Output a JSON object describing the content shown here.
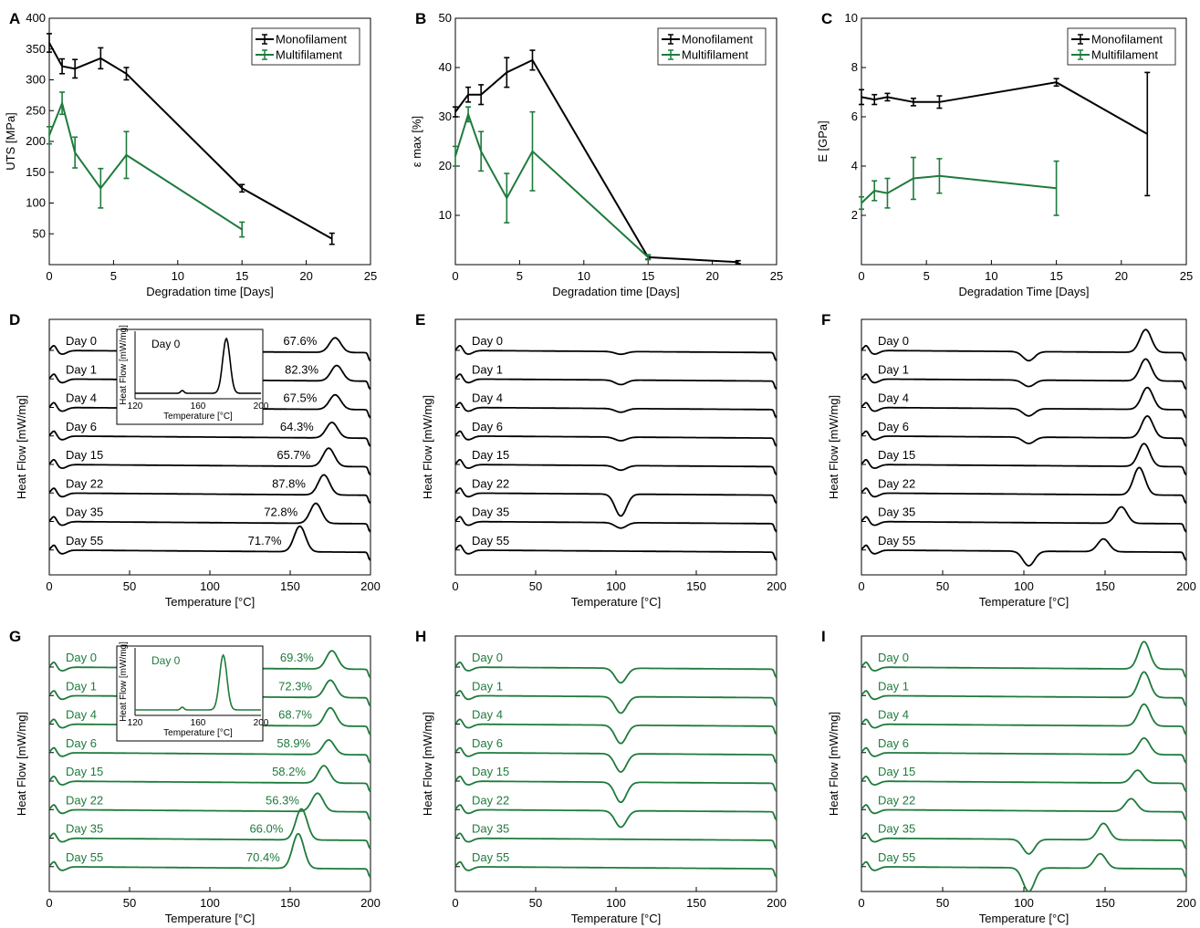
{
  "colors": {
    "mono": "#000000",
    "multi": "#1e7b3c"
  },
  "chart_data": [
    {
      "id": "A",
      "type": "line",
      "panel_label": "A",
      "xlabel": "Degradation time [Days]",
      "ylabel": "UTS [MPa]",
      "xlim": [
        0,
        25
      ],
      "ylim": [
        0,
        400
      ],
      "xticks": [
        "0",
        "5",
        "10",
        "15",
        "20",
        "25"
      ],
      "yticks": [
        "50",
        "100",
        "150",
        "200",
        "250",
        "300",
        "350",
        "400"
      ],
      "grid": false,
      "legend_position": "top-right",
      "series": [
        {
          "name": "Monofilament",
          "color_key": "mono",
          "x": [
            0,
            1,
            2,
            4,
            6,
            15,
            22
          ],
          "y": [
            360,
            322,
            318,
            335,
            310,
            124,
            42
          ],
          "err": [
            15,
            12,
            15,
            17,
            10,
            6,
            9
          ]
        },
        {
          "name": "Multifilament",
          "color_key": "multi",
          "x": [
            0,
            1,
            2,
            4,
            6,
            15
          ],
          "y": [
            210,
            262,
            182,
            124,
            178,
            57
          ],
          "err": [
            14,
            18,
            25,
            32,
            38,
            12
          ]
        }
      ]
    },
    {
      "id": "B",
      "type": "line",
      "panel_label": "B",
      "xlabel": "Degradation time [Days]",
      "ylabel": "ε max [%]",
      "xlim": [
        0,
        25
      ],
      "ylim": [
        0,
        50
      ],
      "xticks": [
        "0",
        "5",
        "10",
        "15",
        "20",
        "25"
      ],
      "yticks": [
        "10",
        "20",
        "30",
        "40",
        "50"
      ],
      "grid": false,
      "legend_position": "top-right",
      "series": [
        {
          "name": "Monofilament",
          "color_key": "mono",
          "x": [
            0,
            1,
            2,
            4,
            6,
            15,
            22
          ],
          "y": [
            31,
            34.5,
            34.5,
            39,
            41.5,
            1.5,
            0.5
          ],
          "err": [
            1,
            1.5,
            2,
            3,
            2,
            0.4,
            0.3
          ]
        },
        {
          "name": "Multifilament",
          "color_key": "multi",
          "x": [
            0,
            1,
            2,
            4,
            6,
            15
          ],
          "y": [
            22,
            30.5,
            23,
            13.5,
            23,
            1.5
          ],
          "err": [
            2,
            1.5,
            4,
            5,
            8,
            0.5
          ]
        }
      ]
    },
    {
      "id": "C",
      "type": "line",
      "panel_label": "C",
      "xlabel": "Degradation Time [Days]",
      "ylabel": "E [GPa]",
      "xlim": [
        0,
        25
      ],
      "ylim": [
        0,
        10
      ],
      "xticks": [
        "0",
        "5",
        "10",
        "15",
        "20",
        "25"
      ],
      "yticks": [
        "2",
        "4",
        "6",
        "8",
        "10"
      ],
      "grid": false,
      "legend_position": "top-right",
      "series": [
        {
          "name": "Monofilament",
          "color_key": "mono",
          "x": [
            0,
            1,
            2,
            4,
            6,
            15,
            22
          ],
          "y": [
            6.8,
            6.7,
            6.8,
            6.6,
            6.6,
            7.4,
            5.3
          ],
          "err": [
            0.3,
            0.2,
            0.15,
            0.15,
            0.25,
            0.15,
            2.5
          ]
        },
        {
          "name": "Multifilament",
          "color_key": "multi",
          "x": [
            0,
            1,
            2,
            4,
            6,
            15
          ],
          "y": [
            2.5,
            3.0,
            2.9,
            3.5,
            3.6,
            3.1
          ],
          "err": [
            0.25,
            0.4,
            0.6,
            0.85,
            0.7,
            1.1
          ]
        }
      ]
    },
    {
      "id": "D",
      "type": "line",
      "panel_label": "D",
      "color_key": "mono",
      "xlabel": "Temperature [°C]",
      "ylabel": "Heat Flow [mW/mg]",
      "xlim": [
        0,
        200
      ],
      "xticks": [
        "0",
        "50",
        "100",
        "150",
        "200"
      ],
      "curves": [
        {
          "label": "Day 0",
          "percent": "67.6%",
          "base": 1.25,
          "endo": 0,
          "peaks": [
            [
              178,
              16
            ]
          ]
        },
        {
          "label": "Day 1",
          "percent": "82.3%",
          "base": 1.25,
          "endo": 0,
          "peaks": [
            [
              179,
              17
            ]
          ]
        },
        {
          "label": "Day 4",
          "percent": "67.5%",
          "base": 1.25,
          "endo": 0,
          "peaks": [
            [
              178,
              16
            ]
          ]
        },
        {
          "label": "Day 6",
          "percent": "64.3%",
          "base": 1.25,
          "endo": 0,
          "peaks": [
            [
              176,
              17
            ]
          ]
        },
        {
          "label": "Day 15",
          "percent": "65.7%",
          "base": 1.25,
          "endo": 0,
          "peaks": [
            [
              174,
              20
            ]
          ]
        },
        {
          "label": "Day 22",
          "percent": "87.8%",
          "base": 1.25,
          "endo": 0,
          "peaks": [
            [
              171,
              22
            ]
          ]
        },
        {
          "label": "Day 35",
          "percent": "72.8%",
          "base": 1.25,
          "endo": 0,
          "peaks": [
            [
              166,
              22
            ]
          ]
        },
        {
          "label": "Day 55",
          "percent": "71.7%",
          "base": 1.25,
          "endo": 0,
          "peaks": [
            [
              156,
              28
            ]
          ]
        }
      ],
      "inset": {
        "title": "Day 0",
        "xlabel": "Temperature [°C]",
        "ylabel": "Heat Flow [mW/mg]",
        "xlim": [
          120,
          200
        ],
        "xticks": [
          "120",
          "160",
          "200"
        ]
      }
    },
    {
      "id": "E",
      "type": "line",
      "panel_label": "E",
      "color_key": "mono",
      "xlabel": "Temperature [°C]",
      "ylabel": "Heat Flow [mW/mg]",
      "xlim": [
        0,
        200
      ],
      "xticks": [
        "0",
        "50",
        "100",
        "150",
        "200"
      ],
      "curves": [
        {
          "label": "Day 0",
          "base": 1.2,
          "endo": 3,
          "peaks": []
        },
        {
          "label": "Day 1",
          "base": 1.2,
          "endo": 5,
          "peaks": []
        },
        {
          "label": "Day 4",
          "base": 1.2,
          "endo": 4,
          "peaks": []
        },
        {
          "label": "Day 6",
          "base": 1.2,
          "endo": 4,
          "peaks": []
        },
        {
          "label": "Day 15",
          "base": 1.2,
          "endo": 5,
          "peaks": []
        },
        {
          "label": "Day 22",
          "base": 1.2,
          "endo": 24,
          "peaks": []
        },
        {
          "label": "Day 35",
          "base": 1.2,
          "endo": 6,
          "peaks": []
        },
        {
          "label": "Day 55",
          "base": 1.2,
          "endo": 0,
          "peaks": []
        }
      ]
    },
    {
      "id": "F",
      "type": "line",
      "panel_label": "F",
      "color_key": "mono",
      "xlabel": "Temperature [°C]",
      "ylabel": "Heat Flow [mW/mg]",
      "xlim": [
        0,
        200
      ],
      "xticks": [
        "0",
        "50",
        "100",
        "150",
        "200"
      ],
      "curves": [
        {
          "label": "Day 0",
          "base": 1.25,
          "endo": 10,
          "peaks": [
            [
              175,
              25
            ]
          ]
        },
        {
          "label": "Day 1",
          "base": 1.25,
          "endo": 7,
          "peaks": [
            [
              175,
              24
            ]
          ]
        },
        {
          "label": "Day 4",
          "base": 1.25,
          "endo": 8,
          "peaks": [
            [
              176,
              24
            ]
          ]
        },
        {
          "label": "Day 6",
          "base": 1.25,
          "endo": 7,
          "peaks": [
            [
              176,
              24
            ]
          ]
        },
        {
          "label": "Day 15",
          "base": 1.25,
          "endo": 0,
          "peaks": [
            [
              174,
              25
            ]
          ]
        },
        {
          "label": "Day 22",
          "base": 1.25,
          "endo": 0,
          "peaks": [
            [
              171,
              30
            ]
          ]
        },
        {
          "label": "Day 35",
          "base": 1.25,
          "endo": 0,
          "peaks": [
            [
              160,
              18
            ]
          ]
        },
        {
          "label": "Day 55",
          "base": 1.25,
          "endo": 16,
          "peaks": [
            [
              149,
              14
            ]
          ]
        }
      ]
    },
    {
      "id": "G",
      "type": "line",
      "panel_label": "G",
      "color_key": "multi",
      "xlabel": "Temperature [°C]",
      "ylabel": "Heat Flow [mW/mg]",
      "xlim": [
        0,
        200
      ],
      "xticks": [
        "0",
        "50",
        "100",
        "150",
        "200"
      ],
      "curves": [
        {
          "label": "Day 0",
          "percent": "69.3%",
          "base": 1.25,
          "endo": 0,
          "peaks": [
            [
              176,
              20
            ]
          ]
        },
        {
          "label": "Day 1",
          "percent": "72.3%",
          "base": 1.25,
          "endo": 0,
          "peaks": [
            [
              175,
              19
            ]
          ]
        },
        {
          "label": "Day 4",
          "percent": "68.7%",
          "base": 1.25,
          "endo": 0,
          "peaks": [
            [
              175,
              20
            ]
          ]
        },
        {
          "label": "Day 6",
          "percent": "58.9%",
          "base": 1.25,
          "endo": 0,
          "peaks": [
            [
              174,
              16
            ]
          ]
        },
        {
          "label": "Day 15",
          "percent": "58.2%",
          "base": 1.25,
          "endo": 0,
          "peaks": [
            [
              171,
              19
            ]
          ]
        },
        {
          "label": "Day 22",
          "percent": "56.3%",
          "base": 1.25,
          "endo": 0,
          "peaks": [
            [
              167,
              20
            ]
          ]
        },
        {
          "label": "Day 35",
          "percent": "66.0%",
          "base": 1.25,
          "endo": 0,
          "peaks": [
            [
              157,
              34
            ]
          ]
        },
        {
          "label": "Day 55",
          "percent": "70.4%",
          "base": 1.25,
          "endo": 0,
          "peaks": [
            [
              155,
              38
            ]
          ]
        }
      ],
      "inset": {
        "title": "Day 0",
        "xlabel": "Temperature [°C]",
        "ylabel": "Heat Flow [mW/mg]",
        "xlim": [
          120,
          200
        ],
        "xticks": [
          "120",
          "160",
          "200"
        ]
      }
    },
    {
      "id": "H",
      "type": "line",
      "panel_label": "H",
      "color_key": "multi",
      "xlabel": "Temperature [°C]",
      "ylabel": "Heat Flow [mW/mg]",
      "xlim": [
        0,
        200
      ],
      "xticks": [
        "0",
        "50",
        "100",
        "150",
        "200"
      ],
      "curves": [
        {
          "label": "Day 0",
          "base": 1.2,
          "endo": 16,
          "peaks": []
        },
        {
          "label": "Day 1",
          "base": 1.2,
          "endo": 18,
          "peaks": []
        },
        {
          "label": "Day 4",
          "base": 1.2,
          "endo": 20,
          "peaks": []
        },
        {
          "label": "Day 6",
          "base": 1.2,
          "endo": 20,
          "peaks": []
        },
        {
          "label": "Day 15",
          "base": 1.2,
          "endo": 22,
          "peaks": []
        },
        {
          "label": "Day 22",
          "base": 1.2,
          "endo": 18,
          "peaks": []
        },
        {
          "label": "Day 35",
          "base": 1.2,
          "endo": 0,
          "peaks": []
        },
        {
          "label": "Day 55",
          "base": 1.2,
          "endo": 0,
          "peaks": []
        }
      ]
    },
    {
      "id": "I",
      "type": "line",
      "panel_label": "I",
      "color_key": "multi",
      "xlabel": "Temperature [°C]",
      "ylabel": "Heat Flow [mW/mg]",
      "xlim": [
        0,
        200
      ],
      "xticks": [
        "0",
        "50",
        "100",
        "150",
        "200"
      ],
      "curves": [
        {
          "label": "Day 0",
          "base": 1.25,
          "endo": 0,
          "peaks": [
            [
              174,
              30
            ]
          ]
        },
        {
          "label": "Day 1",
          "base": 1.25,
          "endo": 0,
          "peaks": [
            [
              174,
              28
            ]
          ]
        },
        {
          "label": "Day 4",
          "base": 1.25,
          "endo": 0,
          "peaks": [
            [
              174,
              24
            ]
          ]
        },
        {
          "label": "Day 6",
          "base": 1.25,
          "endo": 0,
          "peaks": [
            [
              174,
              18
            ]
          ]
        },
        {
          "label": "Day 15",
          "base": 1.25,
          "endo": 0,
          "peaks": [
            [
              170,
              14
            ]
          ]
        },
        {
          "label": "Day 22",
          "base": 1.25,
          "endo": 0,
          "peaks": [
            [
              166,
              14
            ]
          ]
        },
        {
          "label": "Day 35",
          "base": 1.25,
          "endo": 16,
          "peaks": [
            [
              149,
              18
            ]
          ]
        },
        {
          "label": "Day 55",
          "base": 1.25,
          "endo": 26,
          "peaks": [
            [
              147,
              16
            ]
          ]
        }
      ]
    }
  ]
}
